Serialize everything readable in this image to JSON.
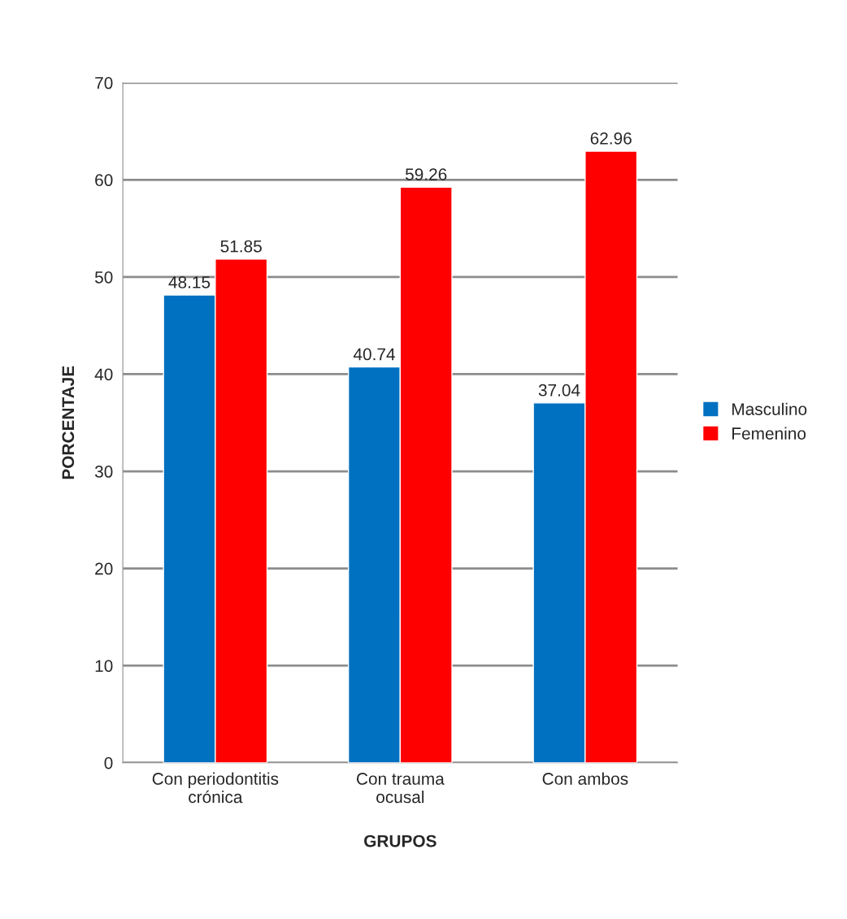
{
  "chart_data": {
    "type": "bar",
    "xlabel": "GRUPOS",
    "ylabel": "PORCENTAJE",
    "categories": [
      "Con periodontitis\ncrónica",
      "Con trauma\nocusal",
      "Con ambos"
    ],
    "series": [
      {
        "name": "Masculino",
        "color": "#0070c0",
        "values": [
          48.15,
          40.74,
          37.04
        ]
      },
      {
        "name": "Femenino",
        "color": "#ff0000",
        "values": [
          51.85,
          59.26,
          62.96
        ]
      }
    ],
    "ylim": [
      0,
      70
    ],
    "yticks": [
      0,
      10,
      20,
      30,
      40,
      50,
      60,
      70
    ],
    "grid": "y",
    "legend": "right",
    "data_labels": true
  }
}
